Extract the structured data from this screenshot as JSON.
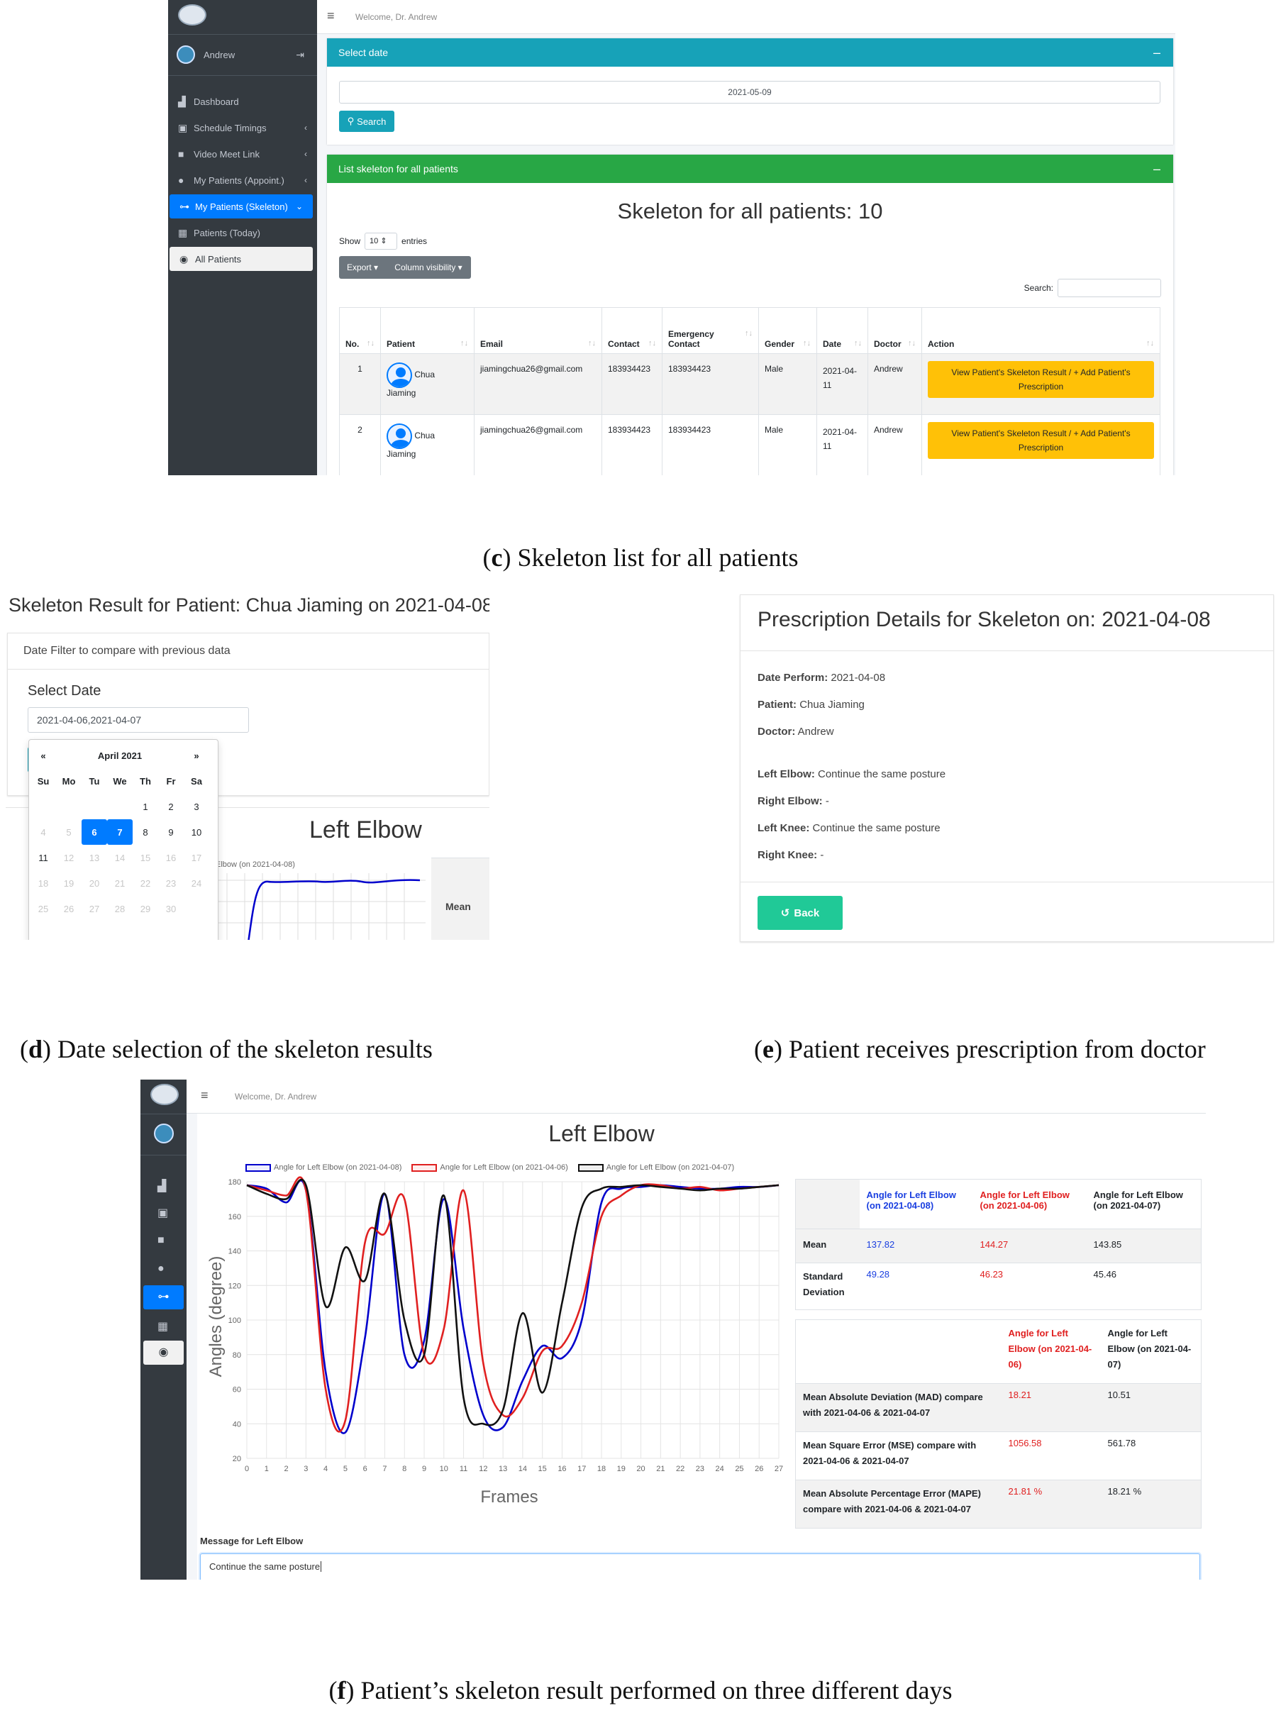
{
  "panel_c": {
    "header_welcome": "Welcome, Dr. Andrew",
    "user_name": "Andrew",
    "nav": [
      {
        "label": "Dashboard",
        "icon": "chart-icon",
        "chevron": ""
      },
      {
        "label": "Schedule Timings",
        "icon": "calendar-check-icon",
        "chevron": "‹"
      },
      {
        "label": "Video Meet Link",
        "icon": "video-icon",
        "chevron": "‹"
      },
      {
        "label": "My Patients (Appoint.)",
        "icon": "user-clock-icon",
        "chevron": "‹"
      },
      {
        "label": "My Patients (Skeleton)",
        "icon": "bone-icon",
        "chevron": "⌄"
      },
      {
        "label": "Patients (Today)",
        "icon": "calendar-day-icon",
        "chevron": ""
      },
      {
        "label": "All Patients",
        "icon": "eye-icon",
        "chevron": ""
      }
    ],
    "select_date_card": {
      "title": "Select date",
      "date_value": "2021-05-09",
      "search_label": "Search"
    },
    "list_card": {
      "title": "List skeleton for all patients",
      "heading": "Skeleton for all patients: 10",
      "show_label": "Show",
      "entries_value": "10",
      "entries_label": "entries",
      "export_label": "Export",
      "colvis_label": "Column visibility",
      "search_label": "Search:",
      "columns": [
        "No.",
        "Patient",
        "Email",
        "Contact",
        "Emergency Contact",
        "Gender",
        "Date",
        "Doctor",
        "Action"
      ],
      "rows": [
        {
          "no": "1",
          "patient_first": "Chua",
          "patient_last": "Jiaming",
          "email": "jiamingchua26@gmail.com",
          "contact": "183934423",
          "emergency": "183934423",
          "gender": "Male",
          "date": "2021-04-11",
          "doctor": "Andrew",
          "action": "View Patient's Skeleton Result / + Add Patient's Prescription"
        },
        {
          "no": "2",
          "patient_first": "Chua",
          "patient_last": "Jiaming",
          "email": "jiamingchua26@gmail.com",
          "contact": "183934423",
          "emergency": "183934423",
          "gender": "Male",
          "date": "2021-04-11",
          "doctor": "Andrew",
          "action": "View Patient's Skeleton Result / + Add Patient's Prescription"
        }
      ]
    },
    "caption_letter": "c",
    "caption_text": ") Skeleton list for all patients"
  },
  "panel_d": {
    "title": "Skeleton Result for Patient: Chua Jiaming on 2021-04-08",
    "filter_label": "Date Filter to compare with previous data",
    "select_date_label": "Select Date",
    "date_range_value": "2021-04-06,2021-04-07",
    "calendar": {
      "prev": "«",
      "next": "»",
      "month": "April 2021",
      "weekdays": [
        "Su",
        "Mo",
        "Tu",
        "We",
        "Th",
        "Fr",
        "Sa"
      ],
      "weeks": [
        [
          "",
          "",
          "",
          "",
          "1",
          "2",
          "3"
        ],
        [
          "4",
          "5",
          "6",
          "7",
          "8",
          "9",
          "10"
        ],
        [
          "11",
          "12",
          "13",
          "14",
          "15",
          "16",
          "17"
        ],
        [
          "18",
          "19",
          "20",
          "21",
          "22",
          "23",
          "24"
        ],
        [
          "25",
          "26",
          "27",
          "28",
          "29",
          "30",
          ""
        ]
      ],
      "selected": [
        "6",
        "7"
      ]
    },
    "chart_title": "Left Elbow",
    "legend_fragment": "Elbow (on 2021-04-08)",
    "mean_label": "Mean",
    "caption_letter": "d",
    "caption_text": ") Date selection of the skeleton results"
  },
  "panel_e": {
    "title": "Prescription Details for Skeleton on: 2021-04-08",
    "fields": [
      {
        "label": "Date Perform:",
        "value": "2021-04-08"
      },
      {
        "label": "Patient:",
        "value": "Chua Jiaming"
      },
      {
        "label": "Doctor:",
        "value": "Andrew"
      }
    ],
    "joints": [
      {
        "label": "Left Elbow:",
        "value": "Continue the same posture"
      },
      {
        "label": "Right Elbow:",
        "value": "-"
      },
      {
        "label": "Left Knee:",
        "value": "Continue the same posture"
      },
      {
        "label": "Right Knee:",
        "value": "-"
      }
    ],
    "back_label": "Back",
    "caption_letter": "e",
    "caption_text": ") Patient receives prescription from doctor"
  },
  "panel_f": {
    "header_welcome": "Welcome, Dr. Andrew",
    "chart_title": "Left Elbow",
    "legend": [
      "Angle for Left Elbow (on 2021-04-08)",
      "Angle for Left Elbow (on 2021-04-06)",
      "Angle for Left Elbow (on 2021-04-07)"
    ],
    "stats_head": [
      "Angle for Left Elbow (on 2021-04-08)",
      "Angle for Left Elbow (on 2021-04-06)",
      "Angle for Left Elbow (on 2021-04-07)"
    ],
    "stats_rows": [
      {
        "label": "Mean",
        "v": [
          "137.82",
          "144.27",
          "143.85"
        ]
      },
      {
        "label": "Standard Deviation",
        "v": [
          "49.28",
          "46.23",
          "45.46"
        ]
      }
    ],
    "cmp_head": [
      "Angle for Left Elbow (on 2021-04-06)",
      "Angle for Left Elbow (on 2021-04-07)"
    ],
    "cmp_rows": [
      {
        "label": "Mean Absolute Deviation (MAD) compare with 2021-04-06 & 2021-04-07",
        "v": [
          "18.21",
          "10.51"
        ]
      },
      {
        "label": "Mean Square Error (MSE) compare with 2021-04-06 & 2021-04-07",
        "v": [
          "1056.58",
          "561.78"
        ]
      },
      {
        "label": "Mean Absolute Percentage Error (MAPE) compare with 2021-04-06 & 2021-04-07",
        "v": [
          "21.81 %",
          "18.21 %"
        ]
      }
    ],
    "message_label": "Message for Left Elbow",
    "message_value": "Continue the same posture",
    "caption_letter": "f",
    "caption_text": ") Patient’s skeleton result performed on three different days"
  },
  "colors": {
    "sidebar": "#343a40",
    "info": "#17a2b8",
    "success": "#28a745",
    "primary": "#007bff",
    "warning": "#ffc107",
    "teal": "#20c997",
    "series_0408": "#0000cc",
    "series_0406": "#e02020",
    "series_0407": "#111111"
  },
  "chart_data": {
    "type": "line",
    "title": "Left Elbow",
    "xlabel": "Frames",
    "ylabel": "Angles (degree)",
    "x": [
      0,
      1,
      2,
      3,
      4,
      5,
      6,
      7,
      8,
      9,
      10,
      11,
      12,
      13,
      14,
      15,
      16,
      17,
      18,
      19,
      20,
      21,
      22,
      23,
      24,
      25,
      26,
      27
    ],
    "xlim": [
      0,
      27
    ],
    "ylim": [
      20,
      180
    ],
    "yticks": [
      20,
      40,
      60,
      80,
      100,
      120,
      140,
      160,
      180
    ],
    "grid": true,
    "legend_position": "top",
    "series": [
      {
        "name": "Angle for Left Elbow (on 2021-04-08)",
        "color": "#0000cc",
        "values": [
          178,
          176,
          168,
          175,
          70,
          35,
          90,
          173,
          80,
          88,
          170,
          95,
          45,
          38,
          65,
          85,
          78,
          100,
          168,
          176,
          177,
          178,
          177,
          176,
          176,
          177,
          177,
          178
        ]
      },
      {
        "name": "Angle for Left Elbow (on 2021-04-06)",
        "color": "#e02020",
        "values": [
          178,
          175,
          172,
          175,
          60,
          42,
          145,
          150,
          170,
          80,
          95,
          175,
          75,
          45,
          55,
          82,
          85,
          110,
          160,
          172,
          178,
          178,
          176,
          177,
          175,
          176,
          177,
          178
        ]
      },
      {
        "name": "Angle for Left Elbow (on 2021-04-07)",
        "color": "#111111",
        "values": [
          178,
          173,
          170,
          178,
          108,
          142,
          123,
          173,
          100,
          80,
          172,
          55,
          40,
          48,
          104,
          58,
          110,
          165,
          176,
          177,
          178,
          177,
          176,
          175,
          176,
          176,
          177,
          178
        ]
      }
    ]
  }
}
